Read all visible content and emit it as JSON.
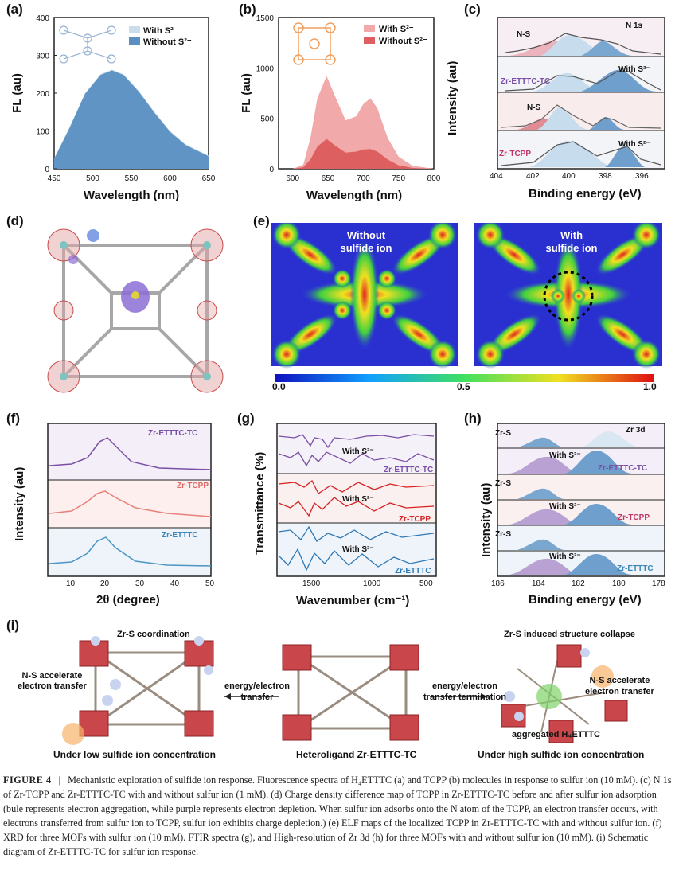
{
  "panels": {
    "a": {
      "label": "(a)",
      "legend": [
        "With S²⁻",
        "Without S²⁻"
      ],
      "colors": {
        "with": "#c9dded",
        "without": "#5b8fc2"
      },
      "ylabel": "FL (au)",
      "xlabel": "Wavelength (nm)",
      "yticks": [
        "0",
        "100",
        "200",
        "300",
        "400"
      ],
      "xticks": [
        "450",
        "500",
        "550",
        "600",
        "650"
      ]
    },
    "b": {
      "label": "(b)",
      "legend": [
        "With S²⁻",
        "Without S²⁻"
      ],
      "colors": {
        "with": "#f2a9a9",
        "without": "#de5f5f"
      },
      "ylabel": "FL (au)",
      "xlabel": "Wavelength (nm)",
      "yticks": [
        "0",
        "500",
        "1000",
        "1500"
      ],
      "xticks": [
        "600",
        "650",
        "700",
        "750",
        "800"
      ]
    },
    "c": {
      "label": "(c)",
      "title": "N 1s",
      "ylabel": "Intensity (au)",
      "xlabel": "Binding energy (eV)",
      "xticks": [
        "404",
        "402",
        "400",
        "398",
        "396"
      ],
      "annotations": [
        "N-S",
        "With S²⁻",
        "Zr-ETTTC-TC",
        "N-S",
        "With S²⁻",
        "Zr-TCPP"
      ]
    },
    "d": {
      "label": "(d)"
    },
    "e": {
      "label": "(e)",
      "left_title": "Without\nsulfide ion",
      "right_title": "With\nsulfide ion",
      "scale": [
        "0.0",
        "0.5",
        "1.0"
      ]
    },
    "f": {
      "label": "(f)",
      "ylabel": "Intensity (au)",
      "xlabel": "2θ (degree)",
      "xticks": [
        "10",
        "20",
        "30",
        "40",
        "50"
      ],
      "series": [
        "Zr-ETTTC-TC",
        "Zr-TCPP",
        "Zr-ETTTC"
      ],
      "colors": [
        "#7b4fa6",
        "#e8807c",
        "#4c95c4"
      ]
    },
    "g": {
      "label": "(g)",
      "ylabel": "Transmittance (%)",
      "xlabel": "Wavenumber (cm⁻¹)",
      "xticks": [
        "1500",
        "1000",
        "500"
      ],
      "annotations": [
        "With S²⁻",
        "Zr-ETTTC-TC",
        "With S²⁻",
        "Zr-TCPP",
        "With S²⁻",
        "Zr-ETTTC"
      ]
    },
    "h": {
      "label": "(h)",
      "title": "Zr 3d",
      "ylabel": "Intensity (au)",
      "xlabel": "Binding energy (eV)",
      "xticks": [
        "186",
        "184",
        "182",
        "180",
        "178"
      ],
      "annotations": [
        "Zr-S",
        "With S²⁻",
        "Zr-ETTTC-TC",
        "Zr-S",
        "With S²⁻",
        "Zr-TCPP",
        "Zr-S",
        "With S²⁻",
        "Zr-ETTTC"
      ]
    },
    "i": {
      "label": "(i)",
      "texts": {
        "zrs_coord": "Zr-S coordination",
        "ns_left": "N-S accelerate\nelectron transfer",
        "under_low": "Under low sulfide ion concentration",
        "energy_left": "energy/electron\ntransfer",
        "hetero": "Heteroligand Zr-ETTTC-TC",
        "energy_right": "energy/electron\ntransfer termination",
        "collapse": "Zr-S induced structure collapse",
        "ns_right": "N-S accelerate\nelectron transfer",
        "aggregated": "aggregated H₄ETTTC",
        "under_high": "Under high sulfide ion concentration"
      }
    }
  },
  "caption": {
    "figure_label": "FIGURE 4",
    "text": "Mechanistic exploration of sulfide ion response. Fluorescence spectra of H₄ETTTC (a) and TCPP (b) molecules in response to sulfur ion (10 mM). (c) N 1s of Zr-TCPP and Zr-ETTTC-TC with and without sulfur ion (1 mM). (d) Charge density difference map of TCPP in Zr-ETTTC-TC before and after sulfur ion adsorption (bule represents electron aggregation, while purple represents electron depletion. When sulfur ion adsorbs onto the N atom of the TCPP, an electron transfer occurs, with electrons transferred from sulfur ion to TCPP, sulfur ion exhibits charge depletion.) (e) ELF maps of the localized TCPP in Zr-ETTTC-TC with and without sulfur ion. (f) XRD for three MOFs with sulfur ion (10 mM). FTIR spectra (g), and High-resolution of Zr 3d (h) for three MOFs with and without sulfur ion (10 mM). (i) Schematic diagram of Zr-ETTTC-TC for sulfur ion response."
  },
  "chart_data": [
    {
      "panel": "a",
      "type": "area",
      "xlim": [
        450,
        650
      ],
      "ylim": [
        0,
        400
      ],
      "series": [
        {
          "name": "With S²⁻",
          "x": [
            450,
            470,
            490,
            510,
            525,
            540,
            560,
            580,
            600,
            620,
            650
          ],
          "y": [
            28,
            110,
            200,
            250,
            262,
            250,
            205,
            150,
            100,
            65,
            35
          ]
        },
        {
          "name": "Without S²⁻",
          "x": [
            450,
            470,
            490,
            510,
            525,
            540,
            560,
            580,
            600,
            620,
            650
          ],
          "y": [
            26,
            108,
            198,
            248,
            260,
            248,
            203,
            148,
            98,
            63,
            33
          ]
        }
      ]
    },
    {
      "panel": "b",
      "type": "area",
      "xlim": [
        580,
        800
      ],
      "ylim": [
        0,
        1500
      ],
      "series": [
        {
          "name": "With S²⁻",
          "x": [
            600,
            615,
            625,
            635,
            648,
            660,
            675,
            690,
            700,
            710,
            720,
            735,
            750,
            770,
            800
          ],
          "y": [
            0,
            40,
            300,
            700,
            920,
            720,
            480,
            520,
            640,
            700,
            600,
            300,
            120,
            30,
            0
          ]
        },
        {
          "name": "Without S²⁻",
          "x": [
            600,
            615,
            625,
            635,
            648,
            660,
            675,
            690,
            700,
            710,
            720,
            735,
            750,
            770,
            800
          ],
          "y": [
            0,
            15,
            90,
            220,
            295,
            230,
            160,
            170,
            190,
            195,
            170,
            90,
            35,
            8,
            0
          ]
        }
      ]
    },
    {
      "panel": "f",
      "type": "line",
      "xlim": [
        5,
        50
      ],
      "series": [
        {
          "name": "Zr-ETTTC-TC",
          "peak": 21
        },
        {
          "name": "Zr-TCPP",
          "peak": 21
        },
        {
          "name": "Zr-ETTTC",
          "peak": 21
        }
      ]
    }
  ]
}
